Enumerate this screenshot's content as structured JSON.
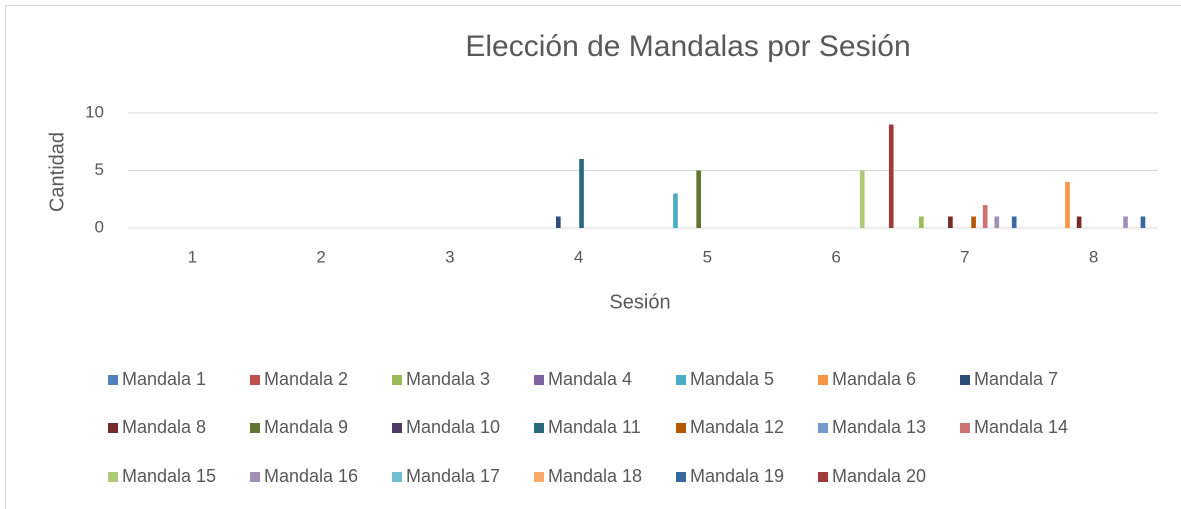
{
  "chart_data": {
    "type": "bar",
    "title": "Elección de Mandalas por Sesión",
    "x_label": "Sesión",
    "y_label": "Cantidad",
    "categories": [
      "1",
      "2",
      "3",
      "4",
      "5",
      "6",
      "7",
      "8"
    ],
    "ylim": [
      0,
      10
    ],
    "yticks": [
      0,
      5,
      10
    ],
    "grid": true,
    "legend": "bottom",
    "series": [
      {
        "name": "Mandala 1",
        "color": "#4F81BD",
        "values": [
          0,
          0,
          0,
          0,
          0,
          0,
          0,
          0
        ]
      },
      {
        "name": "Mandala 2",
        "color": "#C0504D",
        "values": [
          0,
          0,
          0,
          0,
          0,
          0,
          0,
          0
        ]
      },
      {
        "name": "Mandala 3",
        "color": "#9BBB59",
        "values": [
          0,
          0,
          0,
          0,
          0,
          0,
          1,
          0
        ]
      },
      {
        "name": "Mandala 4",
        "color": "#8064A2",
        "values": [
          0,
          0,
          0,
          0,
          0,
          0,
          0,
          0
        ]
      },
      {
        "name": "Mandala 5",
        "color": "#4BACC6",
        "values": [
          0,
          0,
          0,
          0,
          3,
          0,
          0,
          0
        ]
      },
      {
        "name": "Mandala 6",
        "color": "#F79646",
        "values": [
          0,
          0,
          0,
          0,
          0,
          0,
          0,
          4
        ]
      },
      {
        "name": "Mandala 7",
        "color": "#2C4D75",
        "values": [
          0,
          0,
          0,
          1,
          0,
          0,
          0,
          0
        ]
      },
      {
        "name": "Mandala 8",
        "color": "#772C2A",
        "values": [
          0,
          0,
          0,
          0,
          0,
          0,
          1,
          1
        ]
      },
      {
        "name": "Mandala 9",
        "color": "#5F7530",
        "values": [
          0,
          0,
          0,
          0,
          5,
          0,
          0,
          0
        ]
      },
      {
        "name": "Mandala 10",
        "color": "#4D3B62",
        "values": [
          0,
          0,
          0,
          0,
          0,
          0,
          0,
          0
        ]
      },
      {
        "name": "Mandala 11",
        "color": "#276A7C",
        "values": [
          0,
          0,
          0,
          6,
          0,
          0,
          0,
          0
        ]
      },
      {
        "name": "Mandala 12",
        "color": "#B65708",
        "values": [
          0,
          0,
          0,
          0,
          0,
          0,
          1,
          0
        ]
      },
      {
        "name": "Mandala 13",
        "color": "#729ACA",
        "values": [
          0,
          0,
          0,
          0,
          0,
          0,
          0,
          0
        ]
      },
      {
        "name": "Mandala 14",
        "color": "#CD7371",
        "values": [
          0,
          0,
          0,
          0,
          0,
          0,
          2,
          0
        ]
      },
      {
        "name": "Mandala 15",
        "color": "#AFC97A",
        "values": [
          0,
          0,
          0,
          0,
          0,
          5,
          0,
          0
        ]
      },
      {
        "name": "Mandala 16",
        "color": "#A18EB6",
        "values": [
          0,
          0,
          0,
          0,
          0,
          0,
          1,
          1
        ]
      },
      {
        "name": "Mandala 17",
        "color": "#6FBDD1",
        "values": [
          0,
          0,
          0,
          0,
          0,
          0,
          0,
          0
        ]
      },
      {
        "name": "Mandala 18",
        "color": "#F9AB6B",
        "values": [
          0,
          0,
          0,
          0,
          0,
          0,
          0,
          0
        ]
      },
      {
        "name": "Mandala 19",
        "color": "#3A679C",
        "values": [
          0,
          0,
          0,
          0,
          0,
          0,
          1,
          1
        ]
      },
      {
        "name": "Mandala 20",
        "color": "#9F3B38",
        "values": [
          0,
          0,
          0,
          0,
          0,
          9,
          0,
          0
        ]
      }
    ]
  }
}
